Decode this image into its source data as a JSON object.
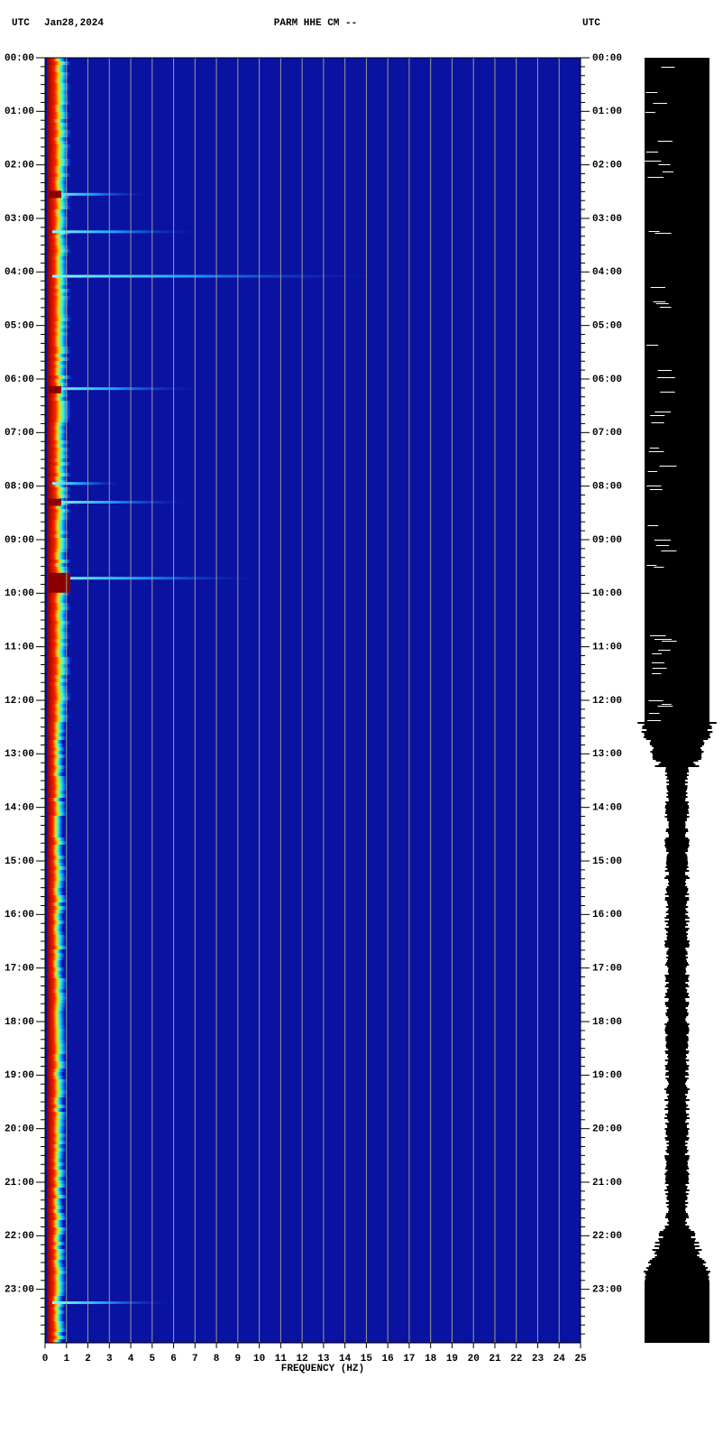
{
  "chart_data": {
    "type": "spectrogram",
    "title": "PARM HHE CM --",
    "date": "Jan28,2024",
    "left_label": "UTC",
    "right_label": "UTC",
    "xlabel": "FREQUENCY (HZ)",
    "xlim": [
      0,
      25
    ],
    "xticks": [
      0,
      1,
      2,
      3,
      4,
      5,
      6,
      7,
      8,
      9,
      10,
      11,
      12,
      13,
      14,
      15,
      16,
      17,
      18,
      19,
      20,
      21,
      22,
      23,
      24,
      25
    ],
    "ylim": [
      0,
      24
    ],
    "yticks": [
      {
        "value": 0,
        "label": "00:00"
      },
      {
        "value": 1,
        "label": "01:00"
      },
      {
        "value": 2,
        "label": "02:00"
      },
      {
        "value": 3,
        "label": "03:00"
      },
      {
        "value": 4,
        "label": "04:00"
      },
      {
        "value": 5,
        "label": "05:00"
      },
      {
        "value": 6,
        "label": "06:00"
      },
      {
        "value": 7,
        "label": "07:00"
      },
      {
        "value": 8,
        "label": "08:00"
      },
      {
        "value": 9,
        "label": "09:00"
      },
      {
        "value": 10,
        "label": "10:00"
      },
      {
        "value": 11,
        "label": "11:00"
      },
      {
        "value": 12,
        "label": "12:00"
      },
      {
        "value": 13,
        "label": "13:00"
      },
      {
        "value": 14,
        "label": "14:00"
      },
      {
        "value": 15,
        "label": "15:00"
      },
      {
        "value": 16,
        "label": "16:00"
      },
      {
        "value": 17,
        "label": "17:00"
      },
      {
        "value": 18,
        "label": "18:00"
      },
      {
        "value": 19,
        "label": "19:00"
      },
      {
        "value": 20,
        "label": "20:00"
      },
      {
        "value": 21,
        "label": "21:00"
      },
      {
        "value": 22,
        "label": "22:00"
      },
      {
        "value": 23,
        "label": "23:00"
      }
    ],
    "grid": true,
    "background_color": "#0a12a2",
    "grid_color": "#a09c88"
  }
}
